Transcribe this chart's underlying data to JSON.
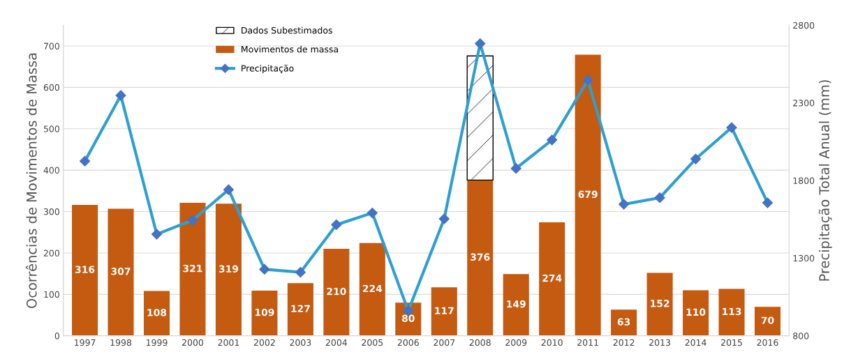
{
  "chart_data": {
    "type": "bar",
    "stacked": true,
    "ylabel": "Ocorrências de Movimentos de Massa",
    "y2label": "Precipitação Total Anual (mm)",
    "categories": [
      "1997",
      "1998",
      "1999",
      "2000",
      "2001",
      "2002",
      "2003",
      "2004",
      "2005",
      "2006",
      "2007",
      "2008",
      "2009",
      "2010",
      "2011",
      "2012",
      "2013",
      "2014",
      "2015",
      "2016"
    ],
    "series": [
      {
        "name": "Movimentos de massa",
        "color": "#c55a11",
        "values": [
          316,
          307,
          108,
          321,
          319,
          109,
          127,
          210,
          224,
          80,
          117,
          376,
          149,
          274,
          679,
          63,
          152,
          110,
          113,
          70
        ],
        "value_labels": [
          "316",
          "307",
          "108",
          "321",
          "319",
          "109",
          "127",
          "210",
          "224",
          "80",
          "117",
          "376",
          "149",
          "274",
          "679",
          "63",
          "152",
          "110",
          "113",
          "70"
        ]
      },
      {
        "name": "Dados Subestimados",
        "color": "#000000",
        "values": [
          null,
          null,
          null,
          null,
          null,
          null,
          null,
          null,
          null,
          null,
          null,
          300,
          null,
          null,
          null,
          null,
          null,
          null,
          null,
          null
        ]
      },
      {
        "name": "Precipitação",
        "type": "line",
        "axis": "y2",
        "color": "#2e9fd0",
        "marker": "diamond",
        "values": [
          1925,
          2348,
          1454,
          1544,
          1741,
          1228,
          1209,
          1515,
          1591,
          960,
          1553,
          2682,
          1878,
          2061,
          2447,
          1647,
          1689,
          1939,
          2141,
          1656
        ]
      }
    ],
    "ylim": [
      0,
      750
    ],
    "yticks": [
      0,
      100,
      200,
      300,
      400,
      500,
      600,
      700
    ],
    "y2lim": [
      800,
      2800
    ],
    "y2ticks": [
      800,
      1300,
      1800,
      2300,
      2800
    ],
    "grid": "y",
    "legend": "top left"
  }
}
